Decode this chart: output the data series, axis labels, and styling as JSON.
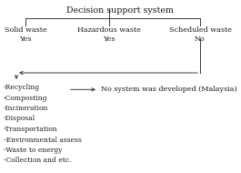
{
  "title": "Decision support system",
  "col1_label": "Solid waste\nYes",
  "col2_label": "Hazardous waste\nYes",
  "col3_label": "Scheduled waste\nNo",
  "bullet_list": [
    "-Recycling",
    "-Composting",
    "-Incineration",
    "-Disposal",
    "-Transportation",
    "-Environmental assess",
    "-Waste to energy",
    "-Collection and etc."
  ],
  "arrow_label": "No system was developed (Malaysia)",
  "bg_color": "#ffffff",
  "text_color": "#1a1a1a",
  "line_color": "#3a3a3a",
  "fontsize": 5.8,
  "title_fontsize": 6.8
}
